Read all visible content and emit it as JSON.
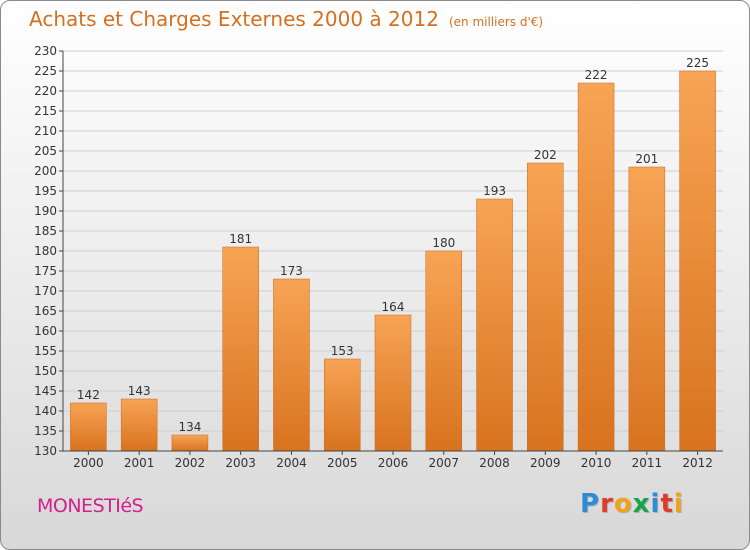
{
  "header": {
    "title": "Achats et Charges Externes 2000 à 2012",
    "subtitle": "(en milliers d'€)"
  },
  "footer": {
    "commune": "MONESTIéS",
    "logo_letters": [
      {
        "char": "P",
        "color": "#2e8bd6"
      },
      {
        "char": "r",
        "color": "#e03a2c"
      },
      {
        "char": "o",
        "color": "#f0a21a"
      },
      {
        "char": "x",
        "color": "#1aa34a"
      },
      {
        "char": "i",
        "color": "#2e8bd6"
      },
      {
        "char": "t",
        "color": "#e03a2c"
      },
      {
        "char": "i",
        "color": "#f0a21a"
      }
    ]
  },
  "colors": {
    "bar_top": "#f7a455",
    "bar_bottom": "#d8731f",
    "axis": "#444444",
    "grid": "#cfcfcf"
  },
  "chart_data": {
    "type": "bar",
    "categories": [
      "2000",
      "2001",
      "2002",
      "2003",
      "2004",
      "2005",
      "2006",
      "2007",
      "2008",
      "2009",
      "2010",
      "2011",
      "2012"
    ],
    "values": [
      142,
      143,
      134,
      181,
      173,
      153,
      164,
      180,
      193,
      202,
      222,
      201,
      225
    ],
    "ylim": [
      130,
      230
    ],
    "yticks": [
      130,
      135,
      140,
      145,
      150,
      155,
      160,
      165,
      170,
      175,
      180,
      185,
      190,
      195,
      200,
      205,
      210,
      215,
      220,
      225,
      230
    ],
    "grid": true,
    "legend": "none"
  }
}
